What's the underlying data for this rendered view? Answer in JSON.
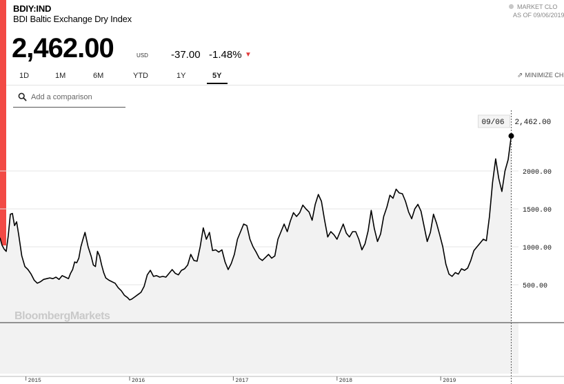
{
  "header": {
    "ticker": "BDIY:IND",
    "name": "BDI Baltic Exchange Dry Index",
    "price": "2,462.00",
    "currency": "USD",
    "change": "-37.00",
    "change_pct": "-1.48%",
    "market_status": "MARKET CLO",
    "as_of": "AS OF 09/06/2019",
    "change_icon": "down-triangle-icon"
  },
  "toolbar": {
    "ranges": [
      "1D",
      "1M",
      "6M",
      "YTD",
      "1Y",
      "5Y"
    ],
    "active_range": "5Y",
    "minimize_label": "MINIMIZE CH",
    "minimize_icon": "minimize-arrows-icon",
    "compare_placeholder": "Add a comparison",
    "compare_icon": "search-icon"
  },
  "colors": {
    "accent": "#f24a45",
    "line": "#000000",
    "area": "#f2f2f2",
    "grid": "#e6e6e6"
  },
  "chart_data": {
    "type": "line",
    "x": [
      2014.75,
      2014.77,
      2014.79,
      2014.81,
      2014.83,
      2014.85,
      2014.87,
      2014.89,
      2014.91,
      2014.93,
      2014.96,
      2014.99,
      2015.02,
      2015.05,
      2015.08,
      2015.11,
      2015.14,
      2015.17,
      2015.2,
      2015.23,
      2015.26,
      2015.29,
      2015.32,
      2015.35,
      2015.38,
      2015.41,
      2015.43,
      2015.45,
      2015.47,
      2015.49,
      2015.51,
      2015.53,
      2015.55,
      2015.57,
      2015.6,
      2015.63,
      2015.65,
      2015.67,
      2015.69,
      2015.71,
      2015.73,
      2015.75,
      2015.77,
      2015.8,
      2015.83,
      2015.86,
      2015.89,
      2015.92,
      2015.95,
      2015.98,
      2016.0,
      2016.02,
      2016.05,
      2016.08,
      2016.11,
      2016.14,
      2016.17,
      2016.2,
      2016.23,
      2016.26,
      2016.29,
      2016.32,
      2016.35,
      2016.38,
      2016.41,
      2016.44,
      2016.47,
      2016.5,
      2016.53,
      2016.56,
      2016.59,
      2016.62,
      2016.65,
      2016.68,
      2016.71,
      2016.74,
      2016.77,
      2016.8,
      2016.83,
      2016.86,
      2016.89,
      2016.92,
      2016.95,
      2016.98,
      2017.01,
      2017.04,
      2017.07,
      2017.1,
      2017.13,
      2017.16,
      2017.19,
      2017.22,
      2017.25,
      2017.28,
      2017.31,
      2017.34,
      2017.37,
      2017.4,
      2017.43,
      2017.46,
      2017.49,
      2017.52,
      2017.55,
      2017.58,
      2017.61,
      2017.64,
      2017.67,
      2017.7,
      2017.73,
      2017.76,
      2017.79,
      2017.82,
      2017.85,
      2017.88,
      2017.91,
      2017.94,
      2017.97,
      2018.0,
      2018.03,
      2018.06,
      2018.09,
      2018.12,
      2018.15,
      2018.18,
      2018.21,
      2018.24,
      2018.27,
      2018.3,
      2018.33,
      2018.36,
      2018.39,
      2018.42,
      2018.45,
      2018.48,
      2018.51,
      2018.54,
      2018.57,
      2018.6,
      2018.63,
      2018.66,
      2018.69,
      2018.72,
      2018.75,
      2018.78,
      2018.81,
      2018.84,
      2018.87,
      2018.9,
      2018.93,
      2018.96,
      2018.99,
      2019.02,
      2019.05,
      2019.08,
      2019.11,
      2019.14,
      2019.17,
      2019.2,
      2019.23,
      2019.26,
      2019.29,
      2019.32,
      2019.35,
      2019.38,
      2019.41,
      2019.44,
      2019.47,
      2019.5,
      2019.53,
      2019.56,
      2019.59,
      2019.62,
      2019.65,
      2019.68
    ],
    "series": [
      {
        "values": [
          1120,
          1020,
          970,
          940,
          1150,
          1430,
          1440,
          1280,
          1330,
          1160,
          880,
          740,
          700,
          640,
          560,
          520,
          540,
          570,
          580,
          590,
          580,
          600,
          570,
          620,
          600,
          580,
          650,
          700,
          800,
          790,
          850,
          1000,
          1100,
          1190,
          1000,
          870,
          760,
          740,
          940,
          880,
          760,
          660,
          590,
          560,
          540,
          520,
          460,
          420,
          360,
          330,
          300,
          310,
          340,
          370,
          400,
          480,
          630,
          690,
          610,
          620,
          600,
          610,
          600,
          650,
          700,
          650,
          630,
          690,
          710,
          760,
          900,
          820,
          810,
          1000,
          1250,
          1100,
          1190,
          950,
          960,
          930,
          960,
          800,
          700,
          780,
          900,
          1100,
          1200,
          1300,
          1280,
          1100,
          1000,
          930,
          850,
          820,
          860,
          900,
          850,
          880,
          1100,
          1200,
          1300,
          1200,
          1340,
          1450,
          1400,
          1450,
          1550,
          1500,
          1460,
          1350,
          1560,
          1690,
          1600,
          1350,
          1130,
          1200,
          1160,
          1100,
          1200,
          1300,
          1180,
          1130,
          1200,
          1200,
          1100,
          960,
          1040,
          1210,
          1480,
          1240,
          1070,
          1170,
          1400,
          1520,
          1680,
          1640,
          1760,
          1710,
          1700,
          1600,
          1460,
          1370,
          1500,
          1560,
          1470,
          1270,
          1070,
          1190,
          1430,
          1310,
          1160,
          1000,
          770,
          640,
          610,
          660,
          640,
          710,
          690,
          720,
          820,
          950,
          1000,
          1050,
          1100,
          1080,
          1400,
          1850,
          2160,
          1900,
          1730,
          2000,
          2150,
          2462
        ]
      }
    ],
    "ylim": [
      0,
      2800
    ],
    "yticks": [
      500,
      1000,
      1500,
      2000
    ],
    "ytick_labels": [
      "500.00",
      "1000.00",
      "1500.00",
      "2000.00"
    ],
    "xticks": [
      2015,
      2016,
      2017,
      2018,
      2019
    ],
    "xtick_labels": [
      "2015",
      "2016",
      "2017",
      "2018",
      "2019"
    ],
    "xlim": [
      2014.75,
      2019.75
    ],
    "grid": true,
    "last_value": 2462,
    "last_value_label": "2,462.00",
    "last_date_label": "09/06",
    "watermark": "BloombergMarkets"
  }
}
